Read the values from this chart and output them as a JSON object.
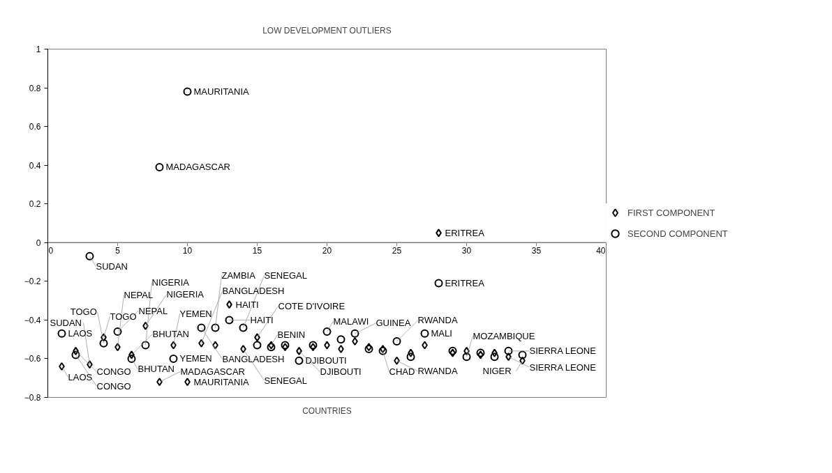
{
  "chart_data": {
    "type": "scatter",
    "title": "LOW DEVELOPMENT OUTLIERS",
    "xlabel": "COUNTRIES",
    "xlim": [
      0,
      40
    ],
    "xticks": [
      0,
      5,
      10,
      15,
      20,
      25,
      30,
      35,
      40
    ],
    "ylim": [
      -0.8,
      1
    ],
    "yticks": [
      -0.8,
      -0.6,
      -0.4,
      -0.2,
      0,
      0.2,
      0.4,
      0.6,
      0.8,
      1
    ],
    "grid": false,
    "legend": "right",
    "x": [
      1,
      2,
      3,
      4,
      5,
      6,
      7,
      8,
      9,
      10,
      11,
      12,
      13,
      14,
      15,
      16,
      17,
      18,
      19,
      20,
      21,
      22,
      23,
      24,
      25,
      26,
      27,
      28,
      29,
      30,
      31,
      32,
      33,
      34
    ],
    "series": [
      {
        "name": "FIRST COMPONENT",
        "color": "#000000",
        "marker": "diamond",
        "values": [
          -0.64,
          -0.56,
          -0.63,
          -0.49,
          -0.54,
          -0.58,
          -0.43,
          -0.72,
          -0.53,
          -0.72,
          -0.52,
          -0.53,
          -0.32,
          -0.55,
          -0.49,
          -0.53,
          -0.54,
          -0.56,
          -0.54,
          -0.53,
          -0.55,
          -0.51,
          -0.54,
          -0.55,
          -0.61,
          -0.57,
          -0.53,
          0.05,
          -0.57,
          -0.56,
          -0.58,
          -0.57,
          -0.59,
          -0.61
        ]
      },
      {
        "name": "SECOND COMPONENT",
        "color": "#000000",
        "marker": "circle",
        "values": [
          -0.47,
          -0.58,
          -0.07,
          -0.52,
          -0.46,
          -0.6,
          -0.53,
          0.39,
          -0.6,
          0.78,
          -0.44,
          -0.44,
          -0.4,
          -0.44,
          -0.53,
          -0.54,
          -0.53,
          -0.61,
          -0.53,
          -0.46,
          -0.5,
          -0.47,
          -0.55,
          -0.56,
          -0.51,
          -0.59,
          -0.47,
          -0.21,
          -0.56,
          -0.59,
          -0.57,
          -0.59,
          -0.56,
          -0.58
        ]
      }
    ],
    "annotations": [
      {
        "text": "MAURITANIA",
        "x": 10,
        "y": 0.78
      },
      {
        "text": "MADAGASCAR",
        "x": 8,
        "y": 0.39
      },
      {
        "text": "ERITREA",
        "x": 28,
        "y": 0.05
      },
      {
        "text": "SUDAN",
        "x": 3,
        "y": -0.07
      },
      {
        "text": "ERITREA",
        "x": 28,
        "y": -0.21
      },
      {
        "text": "HAITI",
        "x": 13,
        "y": -0.32
      },
      {
        "text": "HAITI",
        "x": 13,
        "y": -0.4
      },
      {
        "text": "LAOS",
        "x": 1,
        "y": -0.47
      },
      {
        "text": "LAOS",
        "x": 1,
        "y": -0.64
      },
      {
        "text": "CONGO",
        "x": 2,
        "y": -0.56
      },
      {
        "text": "CONGO",
        "x": 2,
        "y": -0.58
      },
      {
        "text": "SUDAN",
        "x": 3,
        "y": -0.63
      },
      {
        "text": "TOGO",
        "x": 4,
        "y": -0.49
      },
      {
        "text": "TOGO",
        "x": 4,
        "y": -0.52
      },
      {
        "text": "NEPAL",
        "x": 5,
        "y": -0.46
      },
      {
        "text": "NEPAL",
        "x": 5,
        "y": -0.54
      },
      {
        "text": "BHUTAN",
        "x": 6,
        "y": -0.58
      },
      {
        "text": "BHUTAN",
        "x": 6,
        "y": -0.6
      },
      {
        "text": "NIGERIA",
        "x": 7,
        "y": -0.43
      },
      {
        "text": "NIGERIA",
        "x": 7,
        "y": -0.53
      },
      {
        "text": "MADAGASCAR",
        "x": 8,
        "y": -0.72
      },
      {
        "text": "YEMEN",
        "x": 9,
        "y": -0.6
      },
      {
        "text": "YEMEN",
        "x": 9,
        "y": -0.53
      },
      {
        "text": "MAURITANIA",
        "x": 10,
        "y": -0.72
      },
      {
        "text": "BANGLADESH",
        "x": 11,
        "y": -0.44
      },
      {
        "text": "BANGLADESH",
        "x": 11,
        "y": -0.52
      },
      {
        "text": "ZAMBIA",
        "x": 12,
        "y": -0.44
      },
      {
        "text": "SENEGAL",
        "x": 14,
        "y": -0.44
      },
      {
        "text": "SENEGAL",
        "x": 14,
        "y": -0.55
      },
      {
        "text": "COTE D'IVOIRE",
        "x": 15,
        "y": -0.49
      },
      {
        "text": "BENIN",
        "x": 16,
        "y": -0.53
      },
      {
        "text": "DJIBOUTI",
        "x": 18,
        "y": -0.61
      },
      {
        "text": "DJIBOUTI",
        "x": 18,
        "y": -0.56
      },
      {
        "text": "MALAWI",
        "x": 20,
        "y": -0.46
      },
      {
        "text": "GUINEA",
        "x": 22,
        "y": -0.47
      },
      {
        "text": "CHAD",
        "x": 24,
        "y": -0.56
      },
      {
        "text": "RWANDA",
        "x": 25,
        "y": -0.51
      },
      {
        "text": "RWANDA",
        "x": 25,
        "y": -0.61
      },
      {
        "text": "MALI",
        "x": 27,
        "y": -0.47
      },
      {
        "text": "MOZAMBIQUE",
        "x": 30,
        "y": -0.59
      },
      {
        "text": "SIERRA LEONE",
        "x": 33,
        "y": -0.56
      },
      {
        "text": "SIERRA LEONE",
        "x": 33,
        "y": -0.59
      },
      {
        "text": "NIGER",
        "x": 34,
        "y": -0.61
      }
    ]
  }
}
